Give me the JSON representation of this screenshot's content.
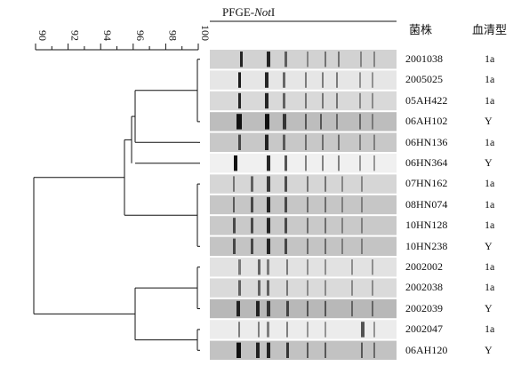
{
  "gel": {
    "title_prefix": "PFGE-",
    "title_italic": "Not",
    "title_suffix": "I"
  },
  "columns": {
    "strain": "菌株",
    "serotype": "血清型"
  },
  "scale": {
    "ticks": [
      "90",
      "92",
      "94",
      "96",
      "98",
      "100"
    ]
  },
  "rows": [
    {
      "strain": "2001038",
      "serotype": "1a"
    },
    {
      "strain": "2005025",
      "serotype": "1a"
    },
    {
      "strain": "05AH422",
      "serotype": "1a"
    },
    {
      "strain": "06AH102",
      "serotype": "Y"
    },
    {
      "strain": "06HN136",
      "serotype": "1a"
    },
    {
      "strain": "06HN364",
      "serotype": "Y"
    },
    {
      "strain": "07HN162",
      "serotype": "1a"
    },
    {
      "strain": "08HN074",
      "serotype": "1a"
    },
    {
      "strain": "10HN128",
      "serotype": "1a"
    },
    {
      "strain": "10HN238",
      "serotype": "Y"
    },
    {
      "strain": "2002002",
      "serotype": "1a"
    },
    {
      "strain": "2002038",
      "serotype": "1a"
    },
    {
      "strain": "2002039",
      "serotype": "Y"
    },
    {
      "strain": "2002047",
      "serotype": "1a"
    },
    {
      "strain": "06AH120",
      "serotype": "Y"
    }
  ]
}
